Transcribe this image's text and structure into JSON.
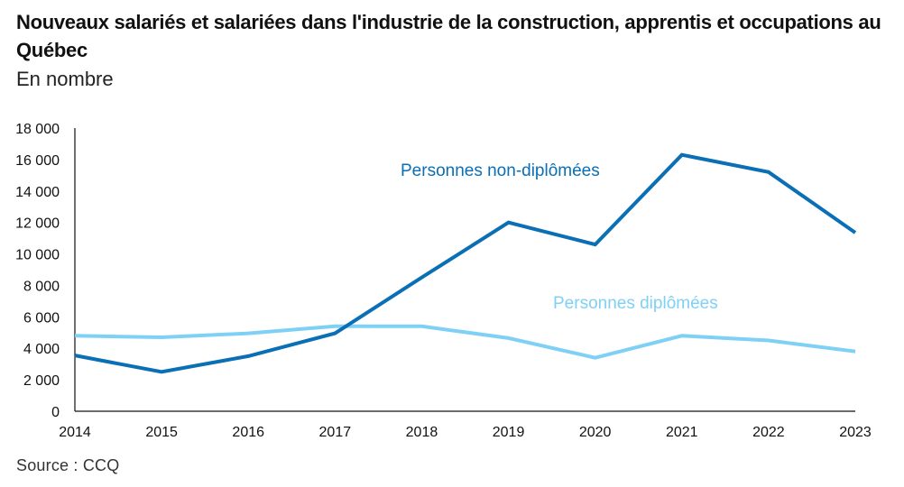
{
  "header": {
    "title": "Nouveaux salariés et salariées dans l'industrie de la construction, apprentis et occupations au Québec",
    "subtitle": "En nombre"
  },
  "footer": {
    "source": "Source : CCQ"
  },
  "chart_data": {
    "type": "line",
    "title": "Nouveaux salariés et salariées dans l'industrie de la construction, apprentis et occupations au Québec",
    "subtitle": "En nombre",
    "xlabel": "",
    "ylabel": "",
    "x": [
      "2014",
      "2015",
      "2016",
      "2017",
      "2018",
      "2019",
      "2020",
      "2021",
      "2022",
      "2023"
    ],
    "ylim": [
      0,
      18000
    ],
    "yticks": [
      0,
      2000,
      4000,
      6000,
      8000,
      10000,
      12000,
      14000,
      16000,
      18000
    ],
    "ytick_labels": [
      "0",
      "2 000",
      "4 000",
      "6 000",
      "8 000",
      "10 000",
      "12 000",
      "14 000",
      "16 000",
      "18 000"
    ],
    "grid": false,
    "legend": "inline labels",
    "series": [
      {
        "name": "Personnes non-diplômées",
        "color": "#0a6fb5",
        "values": [
          3550,
          2500,
          3500,
          4950,
          8500,
          12000,
          10600,
          16300,
          15200,
          11350
        ]
      },
      {
        "name": "Personnes diplômées",
        "color": "#7fd0f5",
        "values": [
          4800,
          4700,
          4950,
          5400,
          5400,
          4650,
          3400,
          4800,
          4500,
          3800
        ]
      }
    ],
    "annotations": [
      {
        "text": "Personnes non-diplômées",
        "series": 0,
        "near_x": "2019",
        "placement": "above line, right of 2019"
      },
      {
        "text": "Personnes diplômées",
        "series": 1,
        "near_x": "2020",
        "placement": "above line, right of 2020"
      }
    ],
    "source": "Source : CCQ"
  }
}
